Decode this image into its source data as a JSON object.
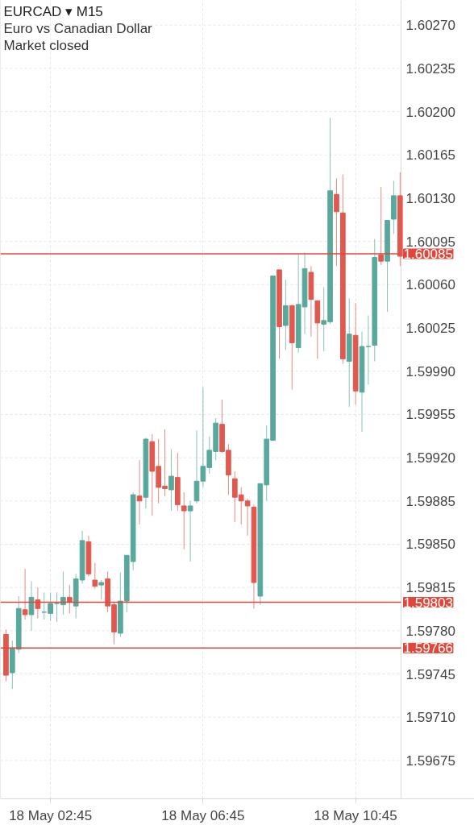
{
  "chart_data": {
    "type": "candlestick",
    "title": "EURCAD ▾ M15",
    "subtitle": "Euro vs Canadian Dollar",
    "annotations": [
      "Market closed"
    ],
    "ohlc": [
      [
        1.59777,
        1.59781,
        1.59739,
        1.59744
      ],
      [
        1.59746,
        1.59772,
        1.59733,
        1.59766
      ],
      [
        1.59765,
        1.59808,
        1.59762,
        1.59798
      ],
      [
        1.59797,
        1.5983,
        1.59789,
        1.59793
      ],
      [
        1.59793,
        1.5982,
        1.5978,
        1.59807
      ],
      [
        1.59805,
        1.59815,
        1.5979,
        1.59798
      ],
      [
        1.59795,
        1.59811,
        1.59789,
        1.59795
      ],
      [
        1.59794,
        1.59811,
        1.59788,
        1.59802
      ],
      [
        1.59802,
        1.59811,
        1.59787,
        1.59802
      ],
      [
        1.59801,
        1.59828,
        1.59793,
        1.59807
      ],
      [
        1.59807,
        1.59817,
        1.59794,
        1.59803
      ],
      [
        1.598,
        1.59826,
        1.5979,
        1.59822
      ],
      [
        1.59821,
        1.59861,
        1.59818,
        1.59853
      ],
      [
        1.59852,
        1.59857,
        1.59824,
        1.59826
      ],
      [
        1.59821,
        1.59835,
        1.59814,
        1.59816
      ],
      [
        1.59817,
        1.59821,
        1.59805,
        1.59819
      ],
      [
        1.59822,
        1.59828,
        1.59795,
        1.598
      ],
      [
        1.59801,
        1.59803,
        1.59769,
        1.59779
      ],
      [
        1.59778,
        1.59827,
        1.59775,
        1.59804
      ],
      [
        1.59804,
        1.59841,
        1.59795,
        1.59841
      ],
      [
        1.59836,
        1.59892,
        1.59829,
        1.5989
      ],
      [
        1.59889,
        1.59918,
        1.59866,
        1.59885
      ],
      [
        1.59888,
        1.59936,
        1.59879,
        1.59935
      ],
      [
        1.59933,
        1.59939,
        1.59873,
        1.59909
      ],
      [
        1.59913,
        1.59935,
        1.59883,
        1.59896
      ],
      [
        1.59897,
        1.59943,
        1.59889,
        1.59895
      ],
      [
        1.59894,
        1.59927,
        1.59877,
        1.59905
      ],
      [
        1.59904,
        1.59924,
        1.59877,
        1.59882
      ],
      [
        1.59881,
        1.59892,
        1.59846,
        1.59877
      ],
      [
        1.59877,
        1.59885,
        1.59836,
        1.59881
      ],
      [
        1.59885,
        1.59942,
        1.59883,
        1.59901
      ],
      [
        1.59901,
        1.59977,
        1.59896,
        1.59913
      ],
      [
        1.59912,
        1.59937,
        1.59907,
        1.59926
      ],
      [
        1.59925,
        1.59952,
        1.59918,
        1.59948
      ],
      [
        1.59947,
        1.59967,
        1.59924,
        1.59925
      ],
      [
        1.59926,
        1.59931,
        1.5989,
        1.59906
      ],
      [
        1.59903,
        1.59909,
        1.59868,
        1.59888
      ],
      [
        1.5989,
        1.59896,
        1.59866,
        1.59885
      ],
      [
        1.59885,
        1.59887,
        1.59857,
        1.59881
      ],
      [
        1.5988,
        1.59882,
        1.59798,
        1.59819
      ],
      [
        1.59808,
        1.59899,
        1.59801,
        1.59899
      ],
      [
        1.59898,
        1.59946,
        1.59885,
        1.59935
      ],
      [
        1.59934,
        1.60067,
        1.59934,
        1.60067
      ],
      [
        1.60072,
        1.60072,
        1.6,
        1.60026
      ],
      [
        1.60027,
        1.60064,
        1.60007,
        1.60043
      ],
      [
        1.60043,
        1.60044,
        1.59975,
        1.60013
      ],
      [
        1.60009,
        1.60085,
        1.60005,
        1.60044
      ],
      [
        1.60042,
        1.60086,
        1.6002,
        1.60073
      ],
      [
        1.6007,
        1.60075,
        1.60018,
        1.60048
      ],
      [
        1.60047,
        1.60047,
        1.6,
        1.60029
      ],
      [
        1.60028,
        1.60058,
        1.60006,
        1.60031
      ],
      [
        1.6003,
        1.60195,
        1.60028,
        1.60136
      ],
      [
        1.60133,
        1.60146,
        1.60075,
        1.60119
      ],
      [
        1.60118,
        1.60149,
        1.59996,
        1.6
      ],
      [
        1.59998,
        1.60049,
        1.59961,
        1.6002
      ],
      [
        1.60019,
        1.60045,
        1.59963,
        1.59974
      ],
      [
        1.59973,
        1.60022,
        1.59941,
        1.6001
      ],
      [
        1.6001,
        1.60035,
        1.59979,
        1.6001
      ],
      [
        1.60011,
        1.60097,
        1.59998,
        1.60082
      ],
      [
        1.60084,
        1.60139,
        1.60076,
        1.60079
      ],
      [
        1.60079,
        1.60112,
        1.60038,
        1.60112
      ],
      [
        1.60113,
        1.60144,
        1.60101,
        1.60132
      ],
      [
        1.60132,
        1.60151,
        1.60075,
        1.60083
      ]
    ],
    "colors": [
      "#e0594f",
      "#5aa89c",
      "#5aa89c",
      "#e0594f",
      "#5aa89c",
      "#e0594f",
      "#5aa89c",
      "#5aa89c",
      "#5aa89c",
      "#5aa89c",
      "#e0594f",
      "#5aa89c",
      "#5aa89c",
      "#e0594f",
      "#e0594f",
      "#5aa89c",
      "#e0594f",
      "#e0594f",
      "#5aa89c",
      "#5aa89c",
      "#5aa89c",
      "#e0594f",
      "#5aa89c",
      "#e0594f",
      "#e0594f",
      "#e0594f",
      "#5aa89c",
      "#e0594f",
      "#e0594f",
      "#5aa89c",
      "#5aa89c",
      "#5aa89c",
      "#5aa89c",
      "#5aa89c",
      "#e0594f",
      "#e0594f",
      "#e0594f",
      "#e0594f",
      "#e0594f",
      "#e0594f",
      "#5aa89c",
      "#5aa89c",
      "#5aa89c",
      "#e0594f",
      "#5aa89c",
      "#e0594f",
      "#5aa89c",
      "#5aa89c",
      "#e0594f",
      "#e0594f",
      "#5aa89c",
      "#5aa89c",
      "#e0594f",
      "#e0594f",
      "#5aa89c",
      "#e0594f",
      "#5aa89c",
      "#5aa89c",
      "#5aa89c",
      "#e0594f",
      "#5aa89c",
      "#5aa89c",
      "#e0594f"
    ],
    "categories": [
      null,
      null,
      null,
      null,
      null,
      null,
      null,
      "18 May 02:45",
      null,
      null,
      null,
      null,
      null,
      null,
      null,
      null,
      null,
      null,
      null,
      null,
      null,
      null,
      null,
      null,
      null,
      null,
      null,
      null,
      null,
      null,
      null,
      "18 May 06:45",
      null,
      null,
      null,
      null,
      null,
      null,
      null,
      null,
      null,
      null,
      null,
      null,
      null,
      null,
      null,
      null,
      null,
      null,
      null,
      null,
      null,
      null,
      null,
      "18 May 10:45",
      null,
      null,
      null,
      null,
      null,
      null,
      null
    ],
    "ylim": [
      1.59644,
      1.6029
    ],
    "yticks": [
      {
        "value": 1.59675,
        "label": "1.59675"
      },
      {
        "value": 1.5971,
        "label": "1.59710"
      },
      {
        "value": 1.59745,
        "label": "1.59745"
      },
      {
        "value": 1.5978,
        "label": "1.59780"
      },
      {
        "value": 1.59815,
        "label": "1.59815"
      },
      {
        "value": 1.5985,
        "label": "1.59850"
      },
      {
        "value": 1.59885,
        "label": "1.59885"
      },
      {
        "value": 1.5992,
        "label": "1.59920"
      },
      {
        "value": 1.59955,
        "label": "1.59955"
      },
      {
        "value": 1.5999,
        "label": "1.59990"
      },
      {
        "value": 1.60025,
        "label": "1.60025"
      },
      {
        "value": 1.6006,
        "label": "1.60060"
      },
      {
        "value": 1.60095,
        "label": "1.60095"
      },
      {
        "value": 1.6013,
        "label": "1.60130"
      },
      {
        "value": 1.60165,
        "label": "1.60165"
      },
      {
        "value": 1.602,
        "label": "1.60200"
      },
      {
        "value": 1.60235,
        "label": "1.60235"
      },
      {
        "value": 1.6027,
        "label": "1.60270"
      }
    ],
    "ref_lines": [
      {
        "axis": "y",
        "value": 1.60085,
        "label": "1.60085",
        "color": "#e0463a"
      },
      {
        "axis": "y",
        "value": 1.59803,
        "label": "1.59803",
        "color": "#e0463a"
      },
      {
        "axis": "y",
        "value": 1.59766,
        "label": "1.59766",
        "color": "#e0463a"
      }
    ],
    "grid": true
  }
}
